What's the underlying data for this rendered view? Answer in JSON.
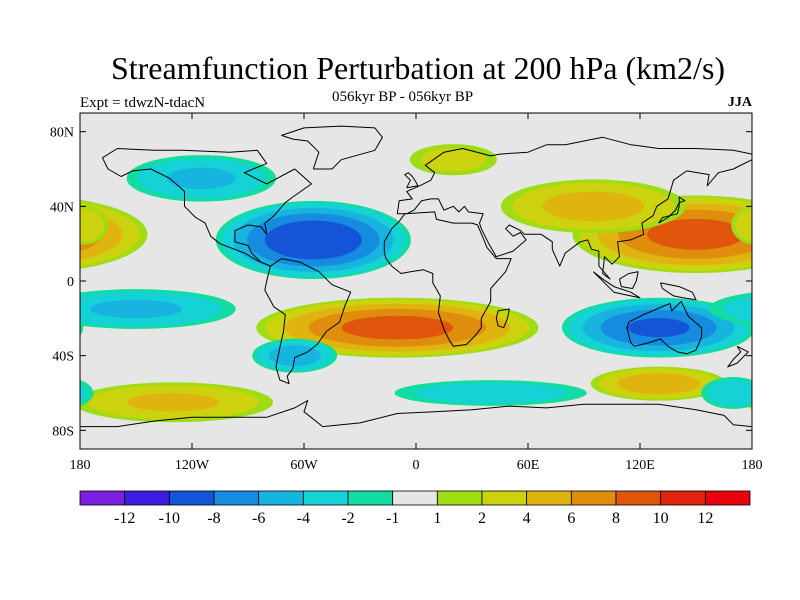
{
  "title": "Streamfunction Perturbation at 200 hPa (km2/s)",
  "subtitle": "056kyr BP - 056kyr BP",
  "left_label": "Expt = tdwzN-tdacN",
  "right_label": "JJA",
  "colors": {
    "background": "#ffffff",
    "ocean_neutral": "#e6e6e6",
    "coastline": "#000000"
  },
  "map": {
    "projection": "cylindrical-equidistant",
    "lon_range": [
      -180,
      180
    ],
    "lat_range": [
      -90,
      90
    ],
    "lon_ticks": [
      {
        "lon": -180,
        "label": "180"
      },
      {
        "lon": -120,
        "label": "120W"
      },
      {
        "lon": -60,
        "label": "60W"
      },
      {
        "lon": 0,
        "label": "0"
      },
      {
        "lon": 60,
        "label": "60E"
      },
      {
        "lon": 120,
        "label": "120E"
      },
      {
        "lon": 180,
        "label": "180"
      }
    ],
    "lat_ticks": [
      {
        "lat": 80,
        "label": "80N"
      },
      {
        "lat": 40,
        "label": "40N"
      },
      {
        "lat": 0,
        "label": "0"
      },
      {
        "lat": -40,
        "label": "40S"
      },
      {
        "lat": -80,
        "label": "80S"
      }
    ],
    "anomalies": [
      {
        "name": "n-atlantic-low",
        "lon": -55,
        "lat": 22,
        "rlon": 55,
        "rlat": 22,
        "value": -9.5
      },
      {
        "name": "w-pacific-high",
        "lon": 150,
        "lat": 25,
        "rlon": 70,
        "rlat": 22,
        "value": 8.5
      },
      {
        "name": "central-asia-high",
        "lon": 95,
        "lat": 40,
        "rlon": 55,
        "rlat": 16,
        "value": 4.5
      },
      {
        "name": "arctic-europe-pos",
        "lon": 20,
        "lat": 65,
        "rlon": 28,
        "rlat": 10,
        "value": 2.5
      },
      {
        "name": "s-atlantic-high",
        "lon": -10,
        "lat": -25,
        "rlon": 80,
        "rlat": 17,
        "value": 8.5
      },
      {
        "name": "australia-low",
        "lon": 130,
        "lat": -25,
        "rlon": 55,
        "rlat": 17,
        "value": -8.0
      },
      {
        "name": "ne-pacific-low",
        "lon": -115,
        "lat": 55,
        "rlon": 45,
        "rlat": 14,
        "value": -4.0
      },
      {
        "name": "subtropical-pacific-low",
        "lon": -150,
        "lat": -15,
        "rlon": 60,
        "rlat": 12,
        "value": -4.0
      },
      {
        "name": "s-pacific-low",
        "lon": -65,
        "lat": -40,
        "rlon": 25,
        "rlat": 10,
        "value": -5.0
      },
      {
        "name": "s-indian-low",
        "lon": 40,
        "lat": -60,
        "rlon": 60,
        "rlat": 8,
        "value": -3.0
      },
      {
        "name": "s-pacific-high",
        "lon": -130,
        "lat": -65,
        "rlon": 60,
        "rlat": 12,
        "value": 4.0
      },
      {
        "name": "se-indian-high",
        "lon": 130,
        "lat": -55,
        "rlon": 40,
        "rlat": 10,
        "value": 5.0
      },
      {
        "name": "dateline-high",
        "lon": -178,
        "lat": 30,
        "rlon": 15,
        "rlat": 12,
        "value": 3.5
      },
      {
        "name": "antarctic-low",
        "lon": 170,
        "lat": -60,
        "rlon": 20,
        "rlat": 10,
        "value": -3.0
      }
    ]
  },
  "legend": {
    "levels": [
      "-12",
      "-10",
      "-8",
      "-6",
      "-4",
      "-2",
      "-1",
      "1",
      "2",
      "4",
      "6",
      "8",
      "10",
      "12"
    ],
    "colors": [
      "#7a1ee0",
      "#3a1ee0",
      "#1455d8",
      "#168ce0",
      "#17b4e0",
      "#15d2d6",
      "#12dca0",
      "#e6e6e6",
      "#9edc14",
      "#cdd20f",
      "#e0b40e",
      "#e08c0c",
      "#e0550c",
      "#e0230c",
      "#e8000c"
    ]
  }
}
